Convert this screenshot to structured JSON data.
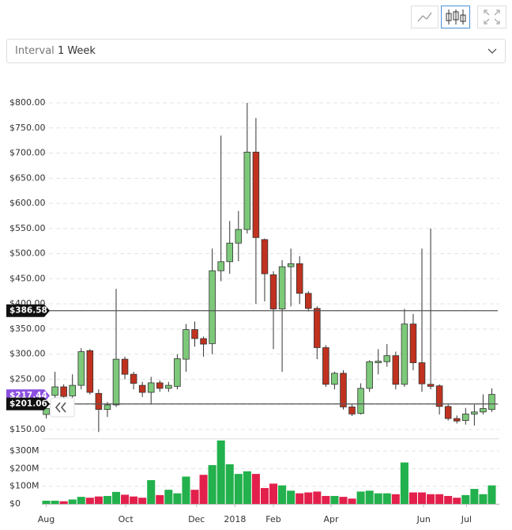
{
  "controls": {
    "interval_label": "Interval",
    "interval_value": "1 Week"
  },
  "chart_data": {
    "type": "candlestick",
    "xlim": [
      -0.5,
      51.5
    ],
    "xticks": [
      {
        "value": 0,
        "label": "Aug"
      },
      {
        "value": 9.1,
        "label": "Oct"
      },
      {
        "value": 17.2,
        "label": "Dec"
      },
      {
        "value": 21.6,
        "label": "2018"
      },
      {
        "value": 26,
        "label": "Feb"
      },
      {
        "value": 32.6,
        "label": "Apr"
      },
      {
        "value": 43.2,
        "label": "Jun"
      },
      {
        "value": 48.1,
        "label": "Jul"
      }
    ],
    "ylim": [
      140,
      820
    ],
    "yticks": [
      {
        "value": 150,
        "label": "$150.00"
      },
      {
        "value": 200,
        "label": "$200.00"
      },
      {
        "value": 250,
        "label": "$250.00"
      },
      {
        "value": 300,
        "label": "$300.00"
      },
      {
        "value": 350,
        "label": "$350.00"
      },
      {
        "value": 400,
        "label": "$400.00"
      },
      {
        "value": 450,
        "label": "$450.00"
      },
      {
        "value": 500,
        "label": "$500.00"
      },
      {
        "value": 550,
        "label": "$550.00"
      },
      {
        "value": 600,
        "label": "$600.00"
      },
      {
        "value": 650,
        "label": "$650.00"
      },
      {
        "value": 700,
        "label": "$700.00"
      },
      {
        "value": 750,
        "label": "$750.00"
      },
      {
        "value": 800,
        "label": "$800.00"
      }
    ],
    "volume_lim": [
      0,
      360000000
    ],
    "volume_ticks": [
      {
        "value": 0,
        "label": "$0"
      },
      {
        "value": 100000000,
        "label": "$100M"
      },
      {
        "value": 200000000,
        "label": "$200M"
      },
      {
        "value": 300000000,
        "label": "$300M"
      }
    ],
    "up_color": "#7dc97a",
    "down_color": "#c0321f",
    "volume_up_color": "#22b14c",
    "volume_down_color": "#e3204b",
    "grid": true,
    "open": [
      180,
      218,
      235,
      217,
      238,
      307,
      222,
      190,
      199,
      290,
      260,
      238,
      224,
      243,
      232,
      236,
      290,
      349,
      331,
      321,
      466,
      484,
      521,
      548,
      702,
      528,
      458,
      390,
      474,
      480,
      421,
      391,
      313,
      240,
      262,
      195,
      182,
      232,
      283,
      285,
      297,
      240,
      360,
      283,
      240,
      237,
      196,
      172,
      168,
      181,
      185,
      190
    ],
    "high": [
      200,
      265,
      240,
      260,
      312,
      310,
      230,
      205,
      430,
      295,
      265,
      245,
      255,
      248,
      245,
      300,
      360,
      365,
      335,
      510,
      735,
      565,
      585,
      800,
      770,
      530,
      465,
      487,
      510,
      495,
      425,
      395,
      318,
      265,
      268,
      200,
      242,
      288,
      310,
      320,
      305,
      390,
      380,
      510,
      550,
      240,
      200,
      178,
      193,
      200,
      220,
      232
    ],
    "low": [
      172,
      208,
      205,
      210,
      230,
      220,
      145,
      175,
      195,
      250,
      230,
      215,
      200,
      225,
      225,
      230,
      265,
      315,
      295,
      300,
      445,
      460,
      485,
      540,
      400,
      405,
      310,
      265,
      395,
      400,
      385,
      290,
      235,
      230,
      190,
      177,
      180,
      225,
      260,
      275,
      230,
      235,
      268,
      225,
      230,
      180,
      168,
      162,
      160,
      158,
      180,
      185
    ],
    "close": [
      192,
      235,
      216,
      238,
      305,
      224,
      190,
      199,
      290,
      260,
      242,
      224,
      243,
      232,
      238,
      291,
      349,
      331,
      320,
      466,
      484,
      521,
      548,
      702,
      532,
      460,
      390,
      474,
      480,
      421,
      391,
      313,
      240,
      262,
      195,
      181,
      232,
      285,
      286,
      297,
      240,
      360,
      283,
      241,
      236,
      196,
      172,
      167,
      181,
      185,
      192,
      220
    ],
    "volume": [
      18000000,
      18000000,
      15000000,
      25000000,
      40000000,
      35000000,
      42000000,
      45000000,
      68000000,
      52000000,
      42000000,
      35000000,
      135000000,
      50000000,
      80000000,
      60000000,
      155000000,
      80000000,
      165000000,
      220000000,
      360000000,
      225000000,
      170000000,
      185000000,
      170000000,
      90000000,
      115000000,
      105000000,
      75000000,
      60000000,
      65000000,
      70000000,
      45000000,
      45000000,
      40000000,
      30000000,
      70000000,
      75000000,
      60000000,
      60000000,
      55000000,
      235000000,
      65000000,
      65000000,
      55000000,
      55000000,
      45000000,
      35000000,
      50000000,
      85000000,
      55000000,
      105000000
    ],
    "reference_lines": [
      {
        "value": 386.58,
        "label": "$386.58"
      },
      {
        "value": 201.06,
        "label": "$201.06"
      }
    ],
    "last_price": {
      "value": 217.44,
      "label": "$217.44"
    }
  }
}
